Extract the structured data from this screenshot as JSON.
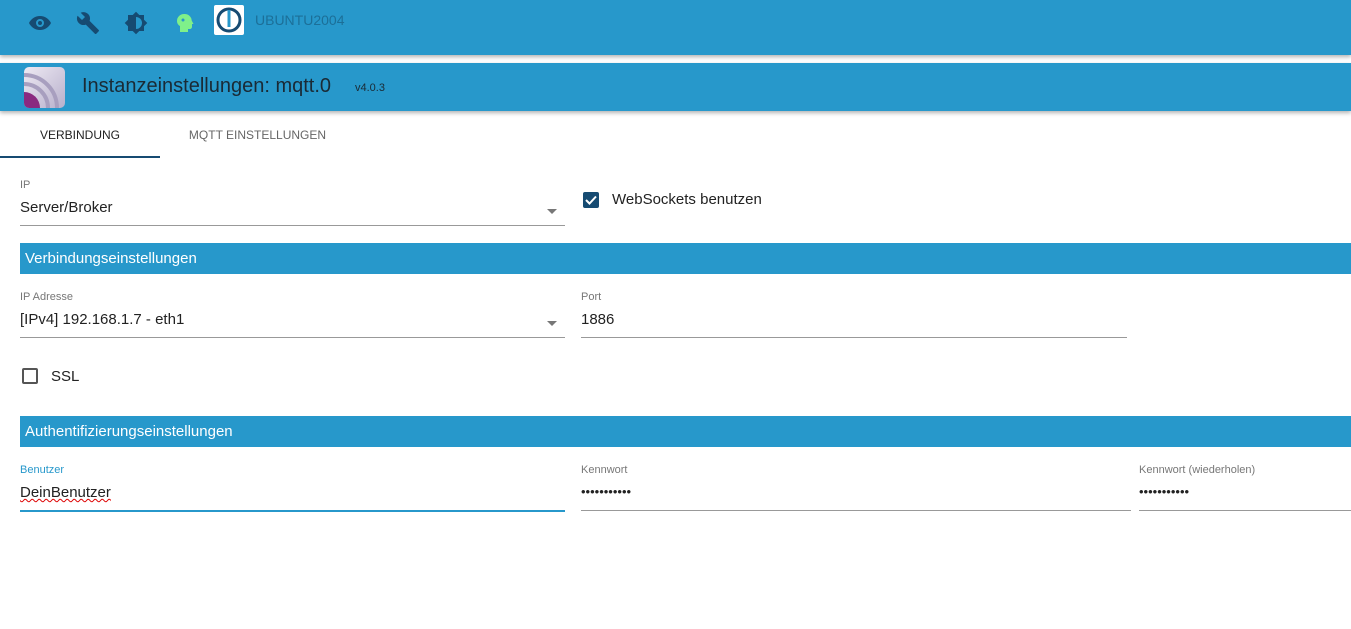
{
  "topbar": {
    "icons": [
      "eye-icon",
      "wrench-icon",
      "brightness-icon",
      "head-icon"
    ],
    "host": "UBUNTU2004",
    "logo": "iobroker-logo"
  },
  "header": {
    "title": "Instanzeinstellungen: mqtt.0",
    "version": "v4.0.3",
    "icon": "mqtt-adapter-icon"
  },
  "tabs": [
    {
      "label": "VERBINDUNG",
      "active": true
    },
    {
      "label": "MQTT EINSTELLUNGEN",
      "active": false
    }
  ],
  "form": {
    "ip": {
      "label": "IP",
      "value": "Server/Broker"
    },
    "websockets": {
      "label": "WebSockets benutzen",
      "checked": true
    },
    "section1": "Verbindungseinstellungen",
    "ip_address": {
      "label": "IP Adresse",
      "value": "[IPv4] 192.168.1.7 - eth1"
    },
    "port": {
      "label": "Port",
      "value": "1886"
    },
    "ssl": {
      "label": "SSL",
      "checked": false
    },
    "section2": "Authentifizierungseinstellungen",
    "user": {
      "label": "Benutzer",
      "value": "DeinBenutzer"
    },
    "password": {
      "label": "Kennwort",
      "value": "•••••••••••"
    },
    "password_repeat": {
      "label": "Kennwort (wiederholen)",
      "value": "•••••••••••"
    }
  },
  "colors": {
    "primary": "#2798cb",
    "accent": "#164b72"
  }
}
